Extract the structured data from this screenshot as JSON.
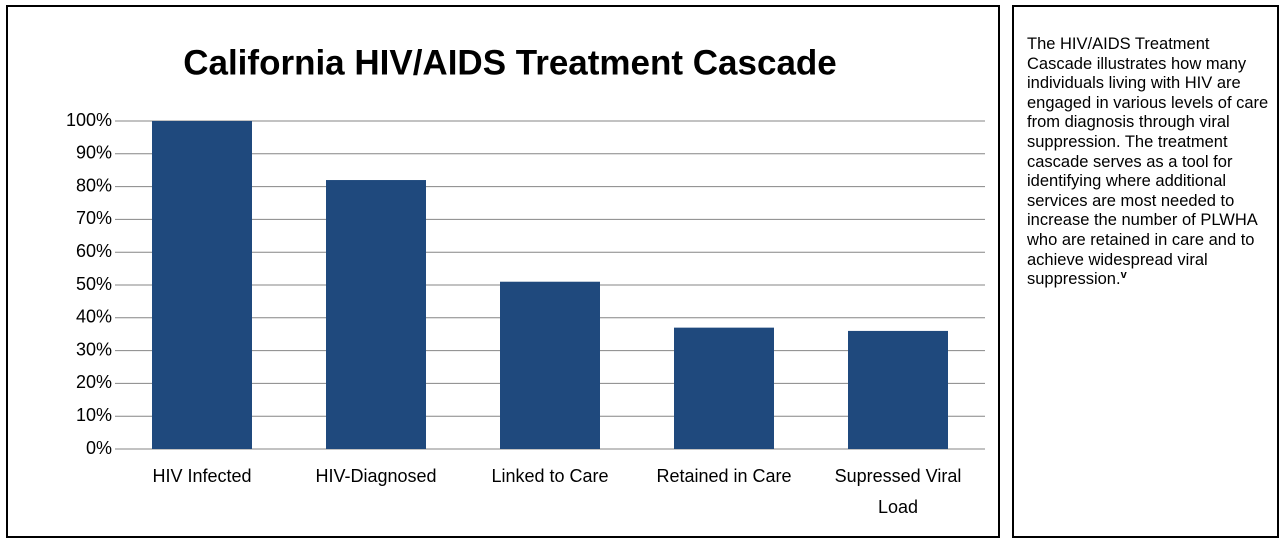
{
  "chart_data": {
    "type": "bar",
    "title": "California HIV/AIDS Treatment Cascade",
    "categories": [
      "HIV Infected",
      "HIV-Diagnosed",
      "Linked to Care",
      "Retained in Care",
      "Supressed Viral Load"
    ],
    "values": [
      100,
      82,
      51,
      37,
      36
    ],
    "color": "#1f497d",
    "ylim": [
      0,
      100
    ],
    "yticks": [
      {
        "value": 0,
        "label": "0%"
      },
      {
        "value": 10,
        "label": "10%"
      },
      {
        "value": 20,
        "label": "20%"
      },
      {
        "value": 30,
        "label": "30%"
      },
      {
        "value": 40,
        "label": "40%"
      },
      {
        "value": 50,
        "label": "50%"
      },
      {
        "value": 60,
        "label": "60%"
      },
      {
        "value": 70,
        "label": "70%"
      },
      {
        "value": 80,
        "label": "80%"
      },
      {
        "value": 90,
        "label": "90%"
      },
      {
        "value": 100,
        "label": "100%"
      }
    ],
    "grid": true
  },
  "note": {
    "text": "The HIV/AIDS Treatment Cascade illustrates how many individuals living with HIV are engaged in various levels of care from diagnosis through viral suppression. The treatment cascade serves as a tool for identifying where additional services are most needed to increase the number of PLWHA who are retained in care and to achieve widespread viral suppression.",
    "superscript": "v"
  }
}
